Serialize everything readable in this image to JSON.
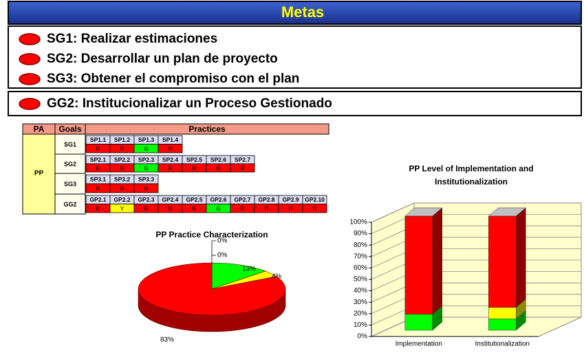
{
  "header": {
    "title": "Metas"
  },
  "goals": [
    "SG1: Realizar estimaciones",
    "SG2: Desarrollar un plan de proyecto",
    "SG3: Obtener el compromiso con el plan"
  ],
  "generic_goal": "GG2: Institucionalizar un Proceso Gestionado",
  "table": {
    "headers": [
      "PA",
      "Goals",
      "Practices"
    ],
    "pa": "PP",
    "rows": [
      {
        "goal": "SG1",
        "practices": [
          "SP1.1",
          "SP1.2",
          "SP1.3",
          "SP1.4"
        ],
        "ratings": [
          "R",
          "R",
          "G",
          "R"
        ]
      },
      {
        "goal": "SG2",
        "practices": [
          "SP2.1",
          "SP2.2",
          "SP2.3",
          "SP2.4",
          "SP2.5",
          "SP2.6",
          "SP2.7"
        ],
        "ratings": [
          "R",
          "R",
          "G",
          "R",
          "R",
          "R",
          "R"
        ]
      },
      {
        "goal": "SG3",
        "practices": [
          "SP3.1",
          "SP3.2",
          "SP3.3"
        ],
        "ratings": [
          "R",
          "R",
          "R"
        ]
      },
      {
        "goal": "GG2",
        "practices": [
          "GP2.1",
          "GP2.2",
          "GP2.3",
          "GP2.4",
          "GP2.5",
          "GP2.6",
          "GP2.7",
          "GP2.8",
          "GP2.9",
          "GP2.10"
        ],
        "ratings": [
          "R",
          "Y",
          "R",
          "R",
          "R",
          "G",
          "R",
          "R",
          "R",
          "R"
        ]
      }
    ]
  },
  "chart_data": [
    {
      "type": "pie",
      "title": "PP Practice Characterization",
      "values": [
        0,
        0,
        13,
        4,
        83
      ],
      "value_labels": [
        "0%",
        "0%",
        "13%",
        "4%",
        "83%"
      ],
      "colors": [
        "#808080",
        "#808080",
        "#00ff00",
        "#ffff00",
        "#ff0000"
      ]
    },
    {
      "type": "bar3d-stacked",
      "title": "PP Level of Implementation and Institutionalization",
      "categories": [
        "Implementation",
        "Institutionalization"
      ],
      "series": [
        {
          "color": "#00ff00",
          "values": [
            14,
            10
          ]
        },
        {
          "color": "#ffff00",
          "values": [
            0,
            10
          ]
        },
        {
          "color": "#ff0000",
          "values": [
            86,
            80
          ]
        }
      ],
      "ylim": [
        0,
        100
      ],
      "yticks": [
        {
          "value": 0,
          "label": "0%"
        },
        {
          "value": 10,
          "label": "10%"
        },
        {
          "value": 20,
          "label": "20%"
        },
        {
          "value": 30,
          "label": "30%"
        },
        {
          "value": 40,
          "label": "40%"
        },
        {
          "value": 50,
          "label": "50%"
        },
        {
          "value": 60,
          "label": "60%"
        },
        {
          "value": 70,
          "label": "70%"
        },
        {
          "value": 80,
          "label": "80%"
        },
        {
          "value": 90,
          "label": "90%"
        },
        {
          "value": 100,
          "label": "100%"
        }
      ],
      "grid": true
    }
  ]
}
